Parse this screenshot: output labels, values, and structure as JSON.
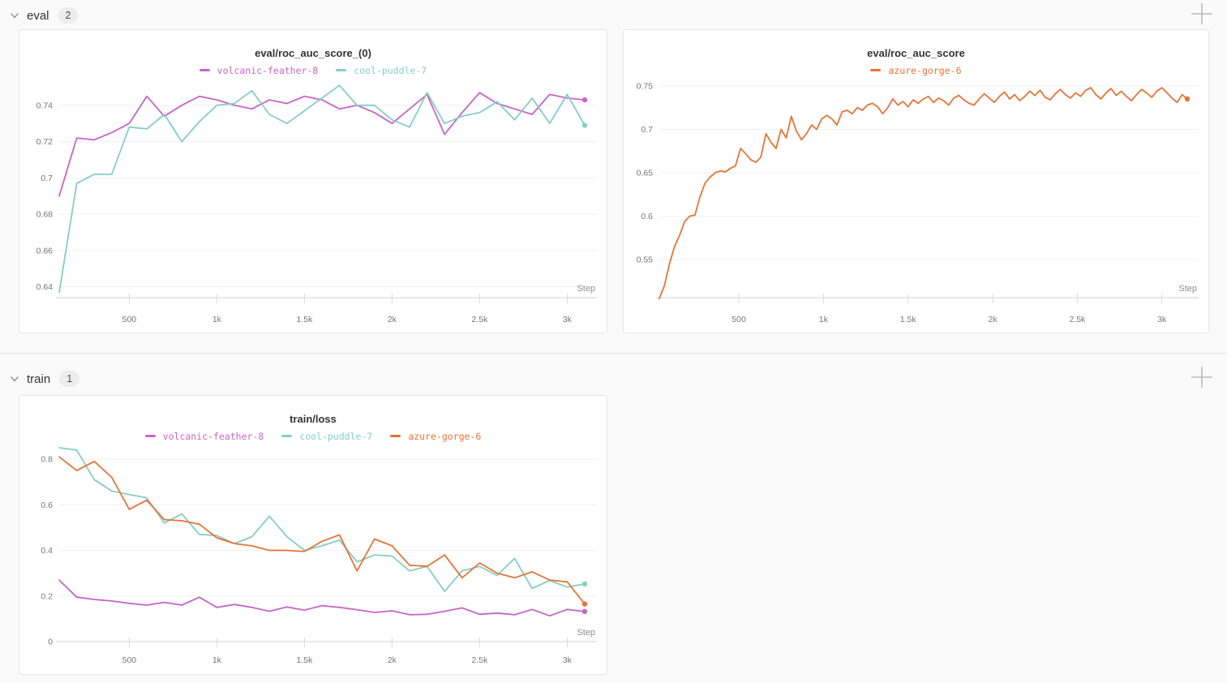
{
  "sections": [
    {
      "label": "eval",
      "count": "2"
    },
    {
      "label": "train",
      "count": "1"
    }
  ],
  "colors": {
    "magenta": "#C565C7",
    "teal": "#87CEBF",
    "orange": "#E57439",
    "grid": "#f1f1f1",
    "axis": "#e0e0e0",
    "tick": "#d9d9d9",
    "tick_label": "#767676",
    "step_label": "#8f8f8f"
  },
  "charts": [
    {
      "title": "eval/roc_auc_score_(0)",
      "chart_data": {
        "type": "line",
        "xlabel": "Step",
        "xlim": [
          100,
          3100
        ],
        "ylim": [
          0.634,
          0.752
        ],
        "yticks": [
          0.64,
          0.66,
          0.68,
          0.7,
          0.72,
          0.74
        ],
        "xticks": [
          {
            "step": 500,
            "label": "500"
          },
          {
            "step": 1000,
            "label": "1k"
          },
          {
            "step": 1500,
            "label": "1.5k"
          },
          {
            "step": 2000,
            "label": "2k"
          },
          {
            "step": 2500,
            "label": "2.5k"
          },
          {
            "step": 3000,
            "label": "3k"
          }
        ],
        "steps": [
          100,
          200,
          300,
          400,
          500,
          600,
          700,
          800,
          900,
          1000,
          1100,
          1200,
          1300,
          1400,
          1500,
          1600,
          1700,
          1800,
          1900,
          2000,
          2100,
          2200,
          2300,
          2400,
          2500,
          2600,
          2700,
          2800,
          2900,
          3000,
          3100
        ],
        "series": [
          {
            "name": "volcanic-feather-8",
            "color": "#C565C7",
            "values": [
              0.69,
              0.722,
              0.721,
              0.725,
              0.73,
              0.745,
              0.734,
              0.74,
              0.745,
              0.743,
              0.74,
              0.738,
              0.743,
              0.741,
              0.745,
              0.743,
              0.738,
              0.74,
              0.736,
              0.73,
              0.738,
              0.746,
              0.724,
              0.736,
              0.747,
              0.741,
              0.738,
              0.735,
              0.746,
              0.744,
              0.743
            ]
          },
          {
            "name": "cool-puddle-7",
            "color": "#87CEBF",
            "values": [
              0.637,
              0.697,
              0.702,
              0.702,
              0.728,
              0.727,
              0.735,
              0.72,
              0.731,
              0.74,
              0.741,
              0.748,
              0.735,
              0.73,
              0.737,
              0.744,
              0.751,
              0.74,
              0.74,
              0.732,
              0.728,
              0.747,
              0.73,
              0.734,
              0.736,
              0.742,
              0.732,
              0.744,
              0.73,
              0.746,
              0.729
            ]
          }
        ]
      }
    },
    {
      "title": "eval/roc_auc_score",
      "chart_data": {
        "type": "line",
        "xlabel": "Step",
        "xlim": [
          30,
          3150
        ],
        "ylim": [
          0.506,
          0.7565
        ],
        "yticks": [
          0.55,
          0.6,
          0.65,
          0.7,
          0.75
        ],
        "xticks": [
          {
            "step": 500,
            "label": "500"
          },
          {
            "step": 1000,
            "label": "1k"
          },
          {
            "step": 1500,
            "label": "1.5k"
          },
          {
            "step": 2000,
            "label": "2k"
          },
          {
            "step": 2500,
            "label": "2.5k"
          },
          {
            "step": 3000,
            "label": "3k"
          }
        ],
        "steps": [
          30,
          60,
          90,
          120,
          150,
          180,
          210,
          240,
          270,
          300,
          330,
          360,
          390,
          420,
          450,
          480,
          510,
          540,
          570,
          600,
          630,
          660,
          690,
          720,
          750,
          780,
          810,
          840,
          870,
          900,
          930,
          960,
          990,
          1020,
          1050,
          1080,
          1110,
          1140,
          1170,
          1200,
          1230,
          1260,
          1290,
          1320,
          1350,
          1380,
          1410,
          1440,
          1470,
          1500,
          1530,
          1560,
          1590,
          1620,
          1650,
          1680,
          1710,
          1740,
          1770,
          1800,
          1830,
          1860,
          1890,
          1920,
          1950,
          1980,
          2010,
          2040,
          2070,
          2100,
          2130,
          2160,
          2190,
          2220,
          2250,
          2280,
          2310,
          2340,
          2370,
          2400,
          2430,
          2460,
          2490,
          2520,
          2550,
          2580,
          2610,
          2640,
          2670,
          2700,
          2730,
          2760,
          2790,
          2820,
          2850,
          2880,
          2910,
          2940,
          2970,
          3000,
          3030,
          3060,
          3090,
          3120,
          3150
        ],
        "series": [
          {
            "name": "azure-gorge-6",
            "color": "#E57439",
            "values": [
              0.505,
              0.52,
              0.545,
              0.565,
              0.578,
              0.594,
              0.6,
              0.601,
              0.622,
              0.638,
              0.645,
              0.65,
              0.652,
              0.651,
              0.655,
              0.658,
              0.678,
              0.672,
              0.665,
              0.662,
              0.668,
              0.695,
              0.685,
              0.678,
              0.7,
              0.69,
              0.715,
              0.698,
              0.688,
              0.695,
              0.705,
              0.7,
              0.712,
              0.716,
              0.712,
              0.705,
              0.72,
              0.722,
              0.718,
              0.725,
              0.722,
              0.728,
              0.73,
              0.726,
              0.718,
              0.725,
              0.735,
              0.728,
              0.732,
              0.726,
              0.734,
              0.73,
              0.735,
              0.738,
              0.731,
              0.736,
              0.733,
              0.728,
              0.736,
              0.739,
              0.734,
              0.73,
              0.728,
              0.735,
              0.741,
              0.736,
              0.731,
              0.738,
              0.743,
              0.735,
              0.74,
              0.733,
              0.738,
              0.744,
              0.739,
              0.745,
              0.737,
              0.734,
              0.741,
              0.746,
              0.74,
              0.736,
              0.742,
              0.738,
              0.745,
              0.748,
              0.74,
              0.735,
              0.742,
              0.747,
              0.739,
              0.744,
              0.738,
              0.733,
              0.74,
              0.746,
              0.742,
              0.737,
              0.744,
              0.748,
              0.742,
              0.736,
              0.731,
              0.74,
              0.735
            ]
          }
        ]
      }
    },
    {
      "title": "train/loss",
      "chart_data": {
        "type": "line",
        "xlabel": "Step",
        "xlim": [
          100,
          3100
        ],
        "ylim": [
          0,
          0.857
        ],
        "yticks": [
          0,
          0.2,
          0.4,
          0.6,
          0.8
        ],
        "xticks": [
          {
            "step": 500,
            "label": "500"
          },
          {
            "step": 1000,
            "label": "1k"
          },
          {
            "step": 1500,
            "label": "1.5k"
          },
          {
            "step": 2000,
            "label": "2k"
          },
          {
            "step": 2500,
            "label": "2.5k"
          },
          {
            "step": 3000,
            "label": "3k"
          }
        ],
        "steps": [
          100,
          200,
          300,
          400,
          500,
          600,
          700,
          800,
          900,
          1000,
          1100,
          1200,
          1300,
          1400,
          1500,
          1600,
          1700,
          1800,
          1900,
          2000,
          2100,
          2200,
          2300,
          2400,
          2500,
          2600,
          2700,
          2800,
          2900,
          3000,
          3100
        ],
        "series": [
          {
            "name": "volcanic-feather-8",
            "color": "#C565C7",
            "values": [
              0.27,
              0.195,
              0.185,
              0.178,
              0.168,
              0.16,
              0.172,
              0.16,
              0.195,
              0.15,
              0.163,
              0.15,
              0.133,
              0.152,
              0.138,
              0.158,
              0.15,
              0.14,
              0.128,
              0.135,
              0.118,
              0.12,
              0.133,
              0.148,
              0.12,
              0.125,
              0.118,
              0.141,
              0.113,
              0.141,
              0.132
            ]
          },
          {
            "name": "cool-puddle-7",
            "color": "#87CEBF",
            "values": [
              0.85,
              0.84,
              0.71,
              0.66,
              0.645,
              0.63,
              0.52,
              0.56,
              0.47,
              0.465,
              0.43,
              0.46,
              0.55,
              0.46,
              0.4,
              0.42,
              0.445,
              0.35,
              0.38,
              0.375,
              0.31,
              0.33,
              0.22,
              0.31,
              0.33,
              0.29,
              0.365,
              0.233,
              0.268,
              0.239,
              0.253
            ]
          },
          {
            "name": "azure-gorge-6",
            "color": "#E57439",
            "values": [
              0.81,
              0.75,
              0.79,
              0.72,
              0.58,
              0.62,
              0.535,
              0.53,
              0.515,
              0.455,
              0.43,
              0.42,
              0.4,
              0.4,
              0.395,
              0.44,
              0.468,
              0.31,
              0.45,
              0.42,
              0.335,
              0.33,
              0.38,
              0.28,
              0.345,
              0.3,
              0.28,
              0.306,
              0.27,
              0.262,
              0.165
            ]
          }
        ]
      }
    }
  ]
}
